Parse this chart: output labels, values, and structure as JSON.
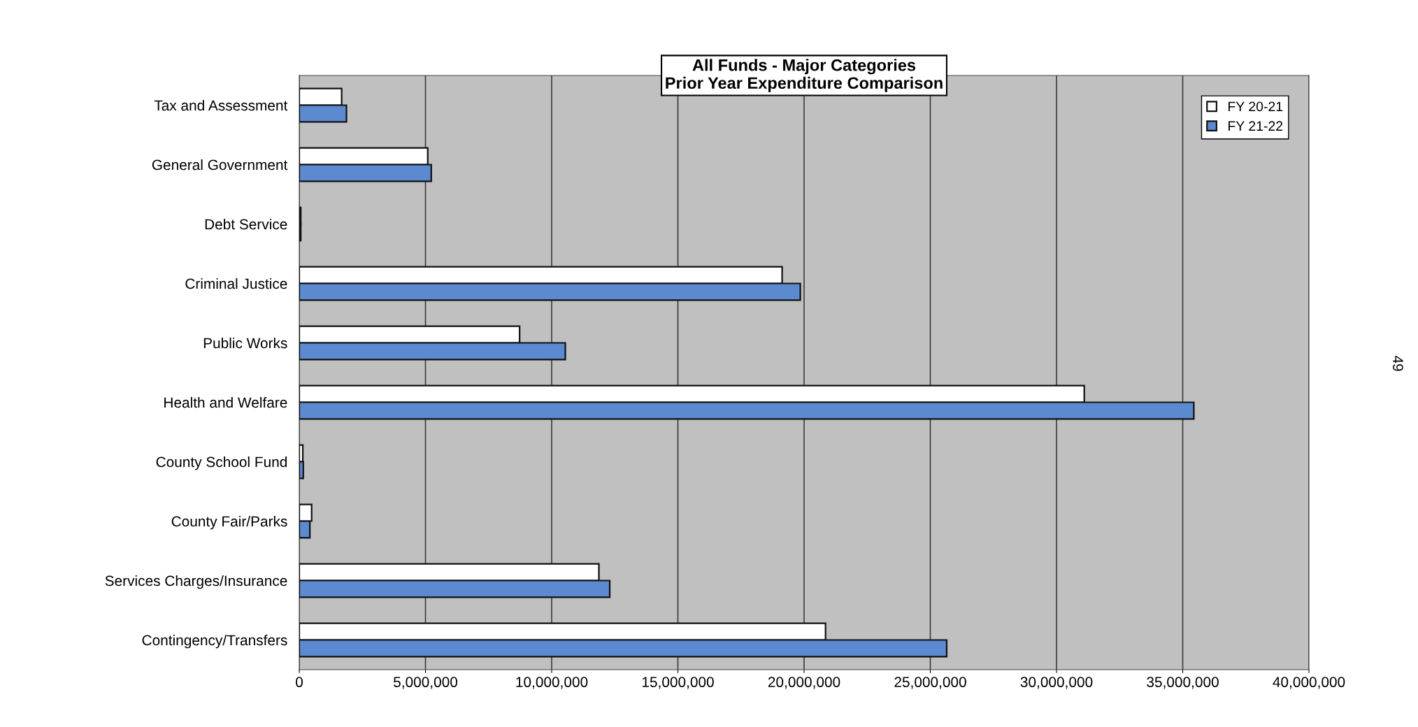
{
  "chart_data": {
    "type": "bar",
    "orientation": "horizontal",
    "title": "All Funds - Major Categories\nPrior Year Expenditure Comparison",
    "categories": [
      "Tax and Assessment",
      "General Government",
      "Debt Service",
      "Criminal Justice",
      "Public Works",
      "Health and Welfare",
      "County School Fund",
      "County Fair/Parks",
      "Services Charges/Insurance",
      "Contingency/Transfers"
    ],
    "series": [
      {
        "name": "FY 20-21",
        "color": "#ffffff",
        "values": [
          1680000,
          5090000,
          60000,
          19130000,
          8730000,
          31100000,
          140000,
          490000,
          11870000,
          20850000
        ]
      },
      {
        "name": "FY 21-22",
        "color": "#5b8ad0",
        "values": [
          1870000,
          5230000,
          60000,
          19850000,
          10540000,
          35440000,
          160000,
          420000,
          12300000,
          25650000
        ]
      }
    ],
    "xlim": [
      0,
      40000000
    ],
    "xticks": [
      0,
      {
        "value": 5000000,
        "label": "5,000,000"
      },
      {
        "value": 10000000,
        "label": "10,000,000"
      },
      {
        "value": 15000000,
        "label": "15,000,000"
      },
      {
        "value": 20000000,
        "label": "20,000,000"
      },
      {
        "value": 25000000,
        "label": "25,000,000"
      },
      {
        "value": 30000000,
        "label": "30,000,000"
      },
      {
        "value": 35000000,
        "label": "35,000,000"
      },
      {
        "value": 40000000,
        "label": "40,000,000"
      }
    ],
    "grid": "x",
    "legend": "top right",
    "annotations": [
      "49"
    ]
  }
}
